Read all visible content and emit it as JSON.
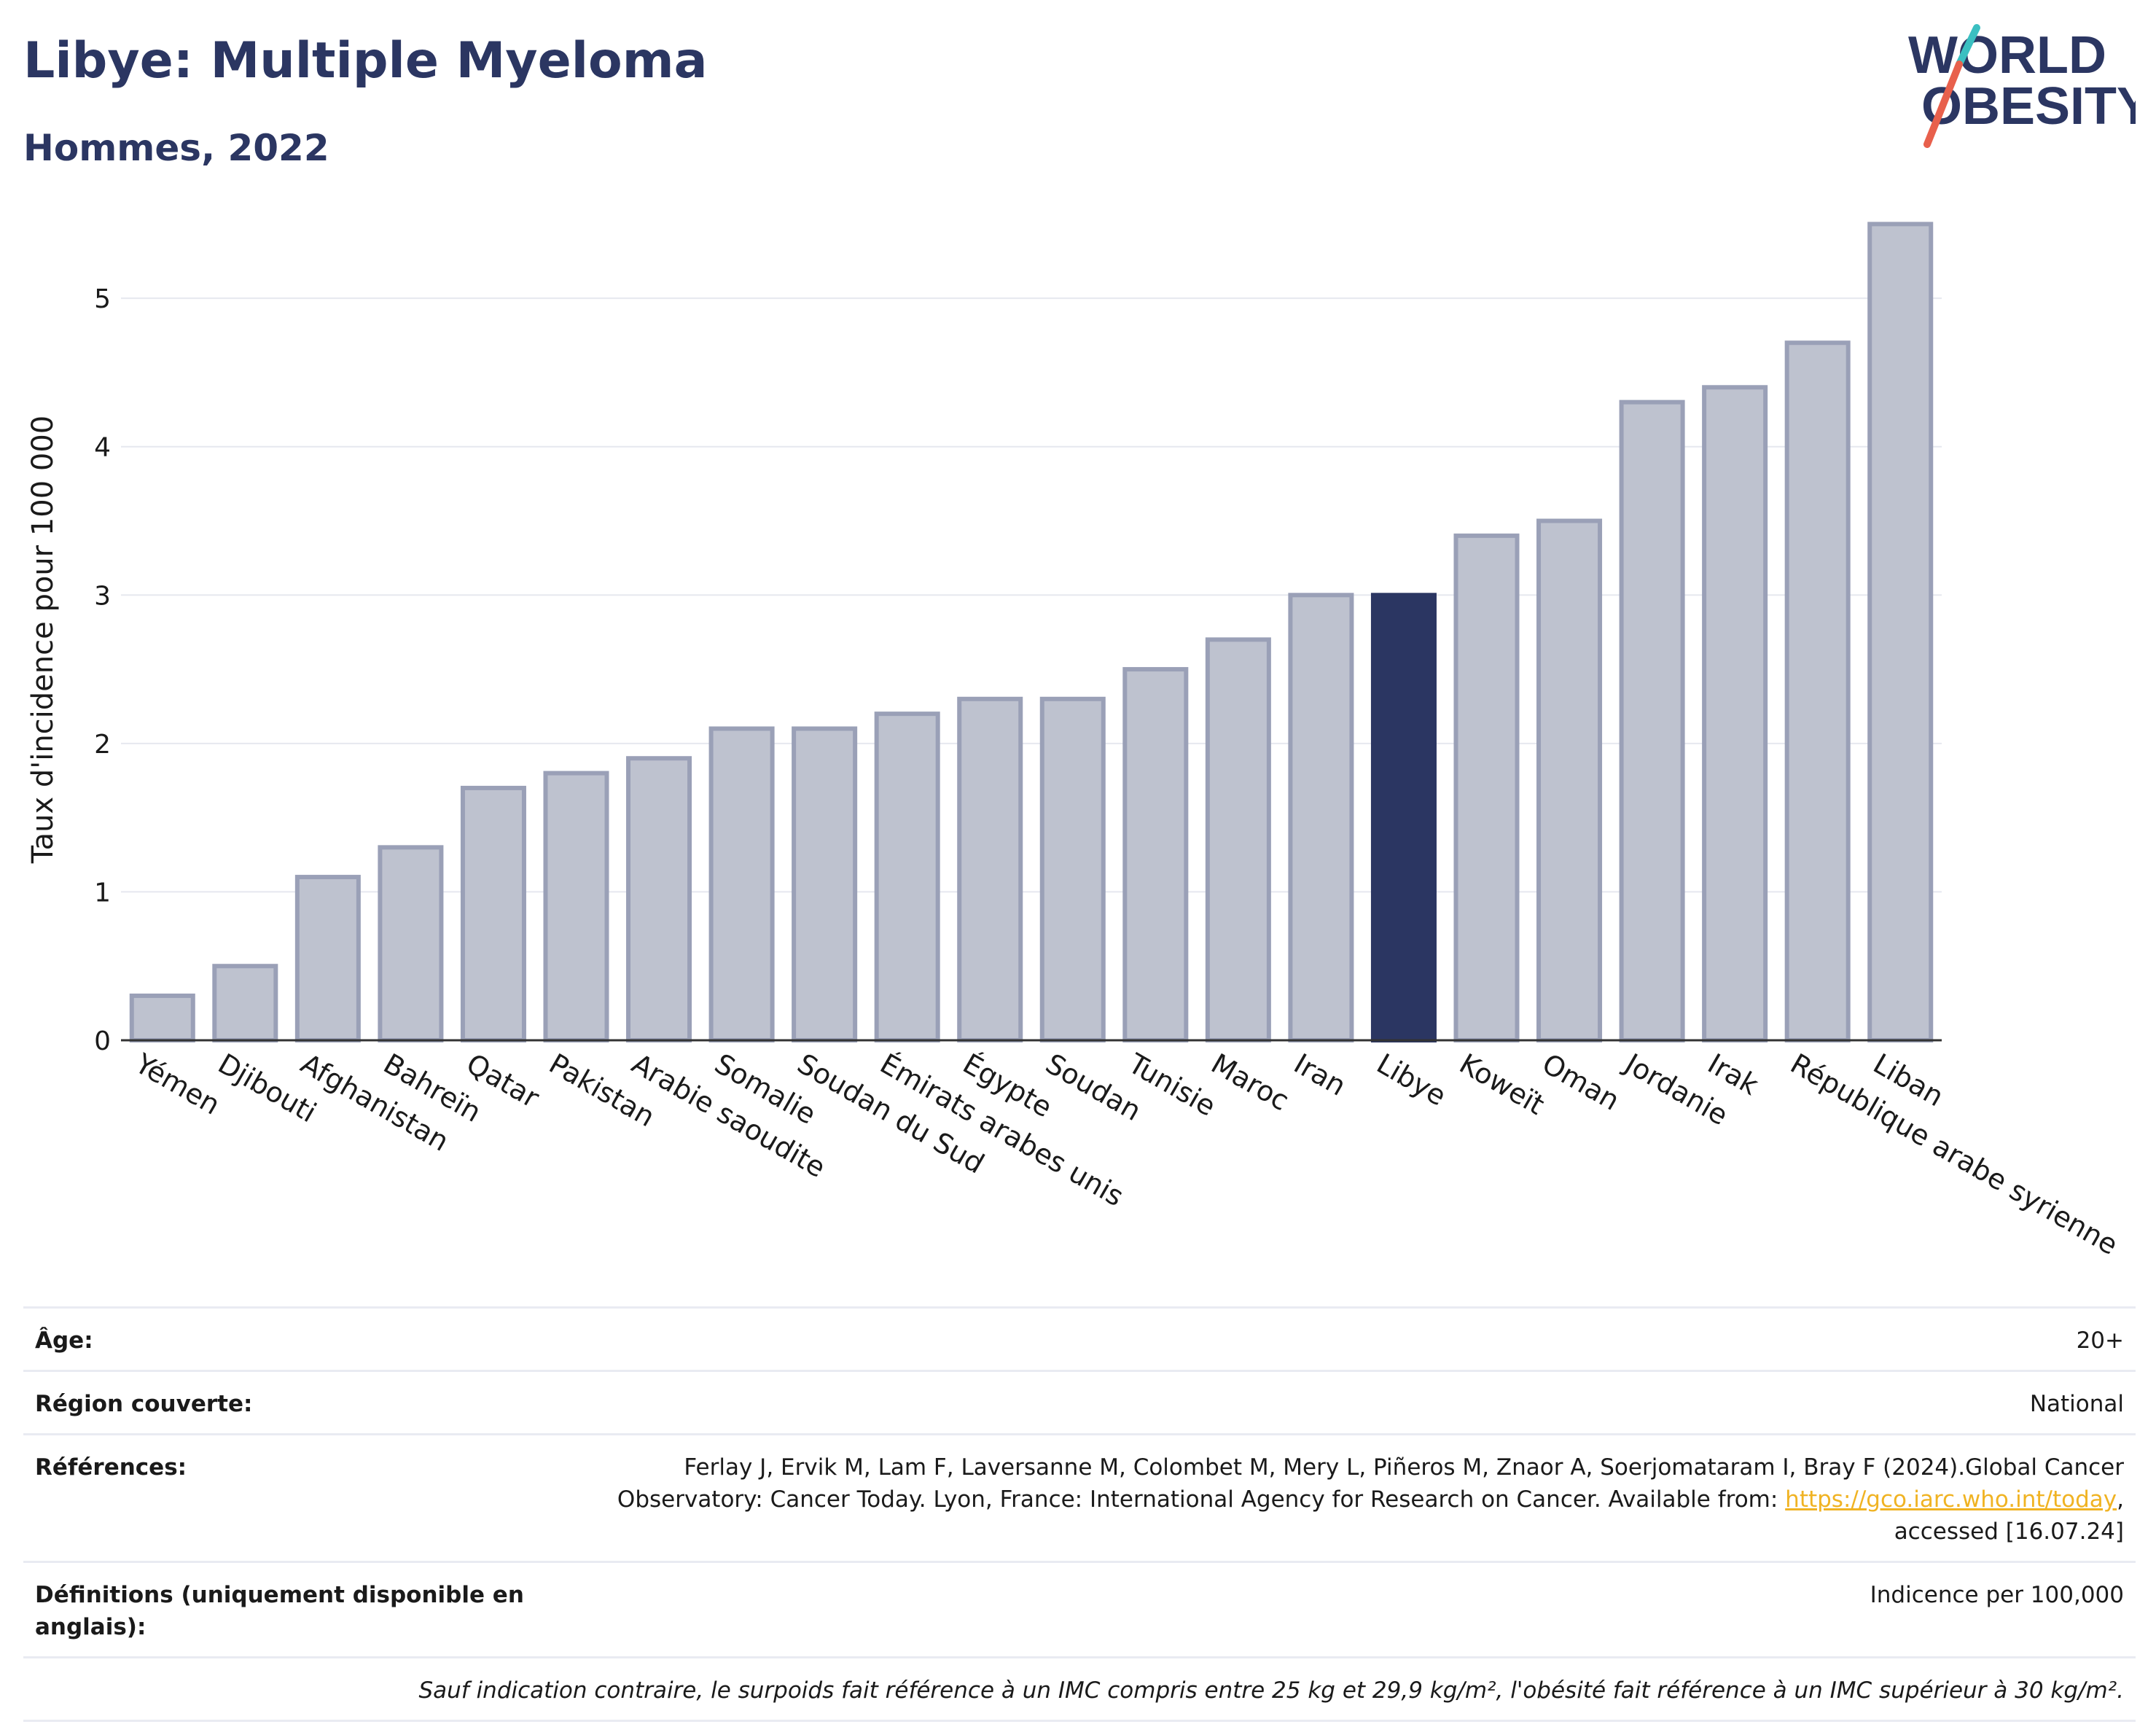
{
  "header": {
    "title": "Libye: Multiple Myeloma",
    "subtitle": "Hommes, 2022"
  },
  "logo": {
    "line1": "WORLD",
    "line2": "OBESITY",
    "icon": "world-obesity-logo"
  },
  "colors": {
    "bar": "#bec2cf",
    "bar_border": "#9aa0b7",
    "highlight": "#2b3662",
    "title": "#2b3662",
    "link": "#f0b323"
  },
  "chart_data": {
    "type": "bar",
    "title": "Libye: Multiple Myeloma",
    "subtitle": "Hommes, 2022",
    "xlabel": "",
    "ylabel": "Taux d'incidence pour 100 000",
    "ylim": [
      0,
      5.6
    ],
    "yticks": [
      0,
      1,
      2,
      3,
      4,
      5
    ],
    "grid": true,
    "highlight": "Libye",
    "categories": [
      "Yémen",
      "Djibouti",
      "Afghanistan",
      "Bahreïn",
      "Qatar",
      "Pakistan",
      "Arabie saoudite",
      "Somalie",
      "Soudan du Sud",
      "Émirats arabes unis",
      "Égypte",
      "Soudan",
      "Tunisie",
      "Maroc",
      "Iran",
      "Libye",
      "Koweït",
      "Oman",
      "Jordanie",
      "Irak",
      "République arabe syrienne",
      "Liban"
    ],
    "values": [
      0.3,
      0.5,
      1.1,
      1.3,
      1.7,
      1.8,
      1.9,
      2.1,
      2.1,
      2.2,
      2.3,
      2.3,
      2.5,
      2.7,
      3.0,
      3.0,
      3.4,
      3.5,
      4.3,
      4.4,
      4.7,
      5.5
    ]
  },
  "info": {
    "age_label": "Âge:",
    "age_value": "20+",
    "region_label": "Région couverte:",
    "region_value": "National",
    "ref_label": "Références:",
    "ref_text": "Ferlay J, Ervik M, Lam F, Laversanne M, Colombet M, Mery L, Piñeros M, Znaor A, Soerjomataram I, Bray F (2024).Global Cancer Observatory: Cancer Today. Lyon, France: International Agency for Research on Cancer. Available from:",
    "ref_link": "https://gco.iarc.who.int/today",
    "ref_suffix": ", accessed [16.07.24]",
    "def_label": "Définitions (uniquement disponible en anglais):",
    "def_value": "Indicence per 100,000",
    "note": "Sauf indication contraire, le surpoids fait référence à un IMC compris entre 25 kg et 29,9 kg/m², l'obésité fait référence à un IMC supérieur à 30 kg/m²."
  }
}
